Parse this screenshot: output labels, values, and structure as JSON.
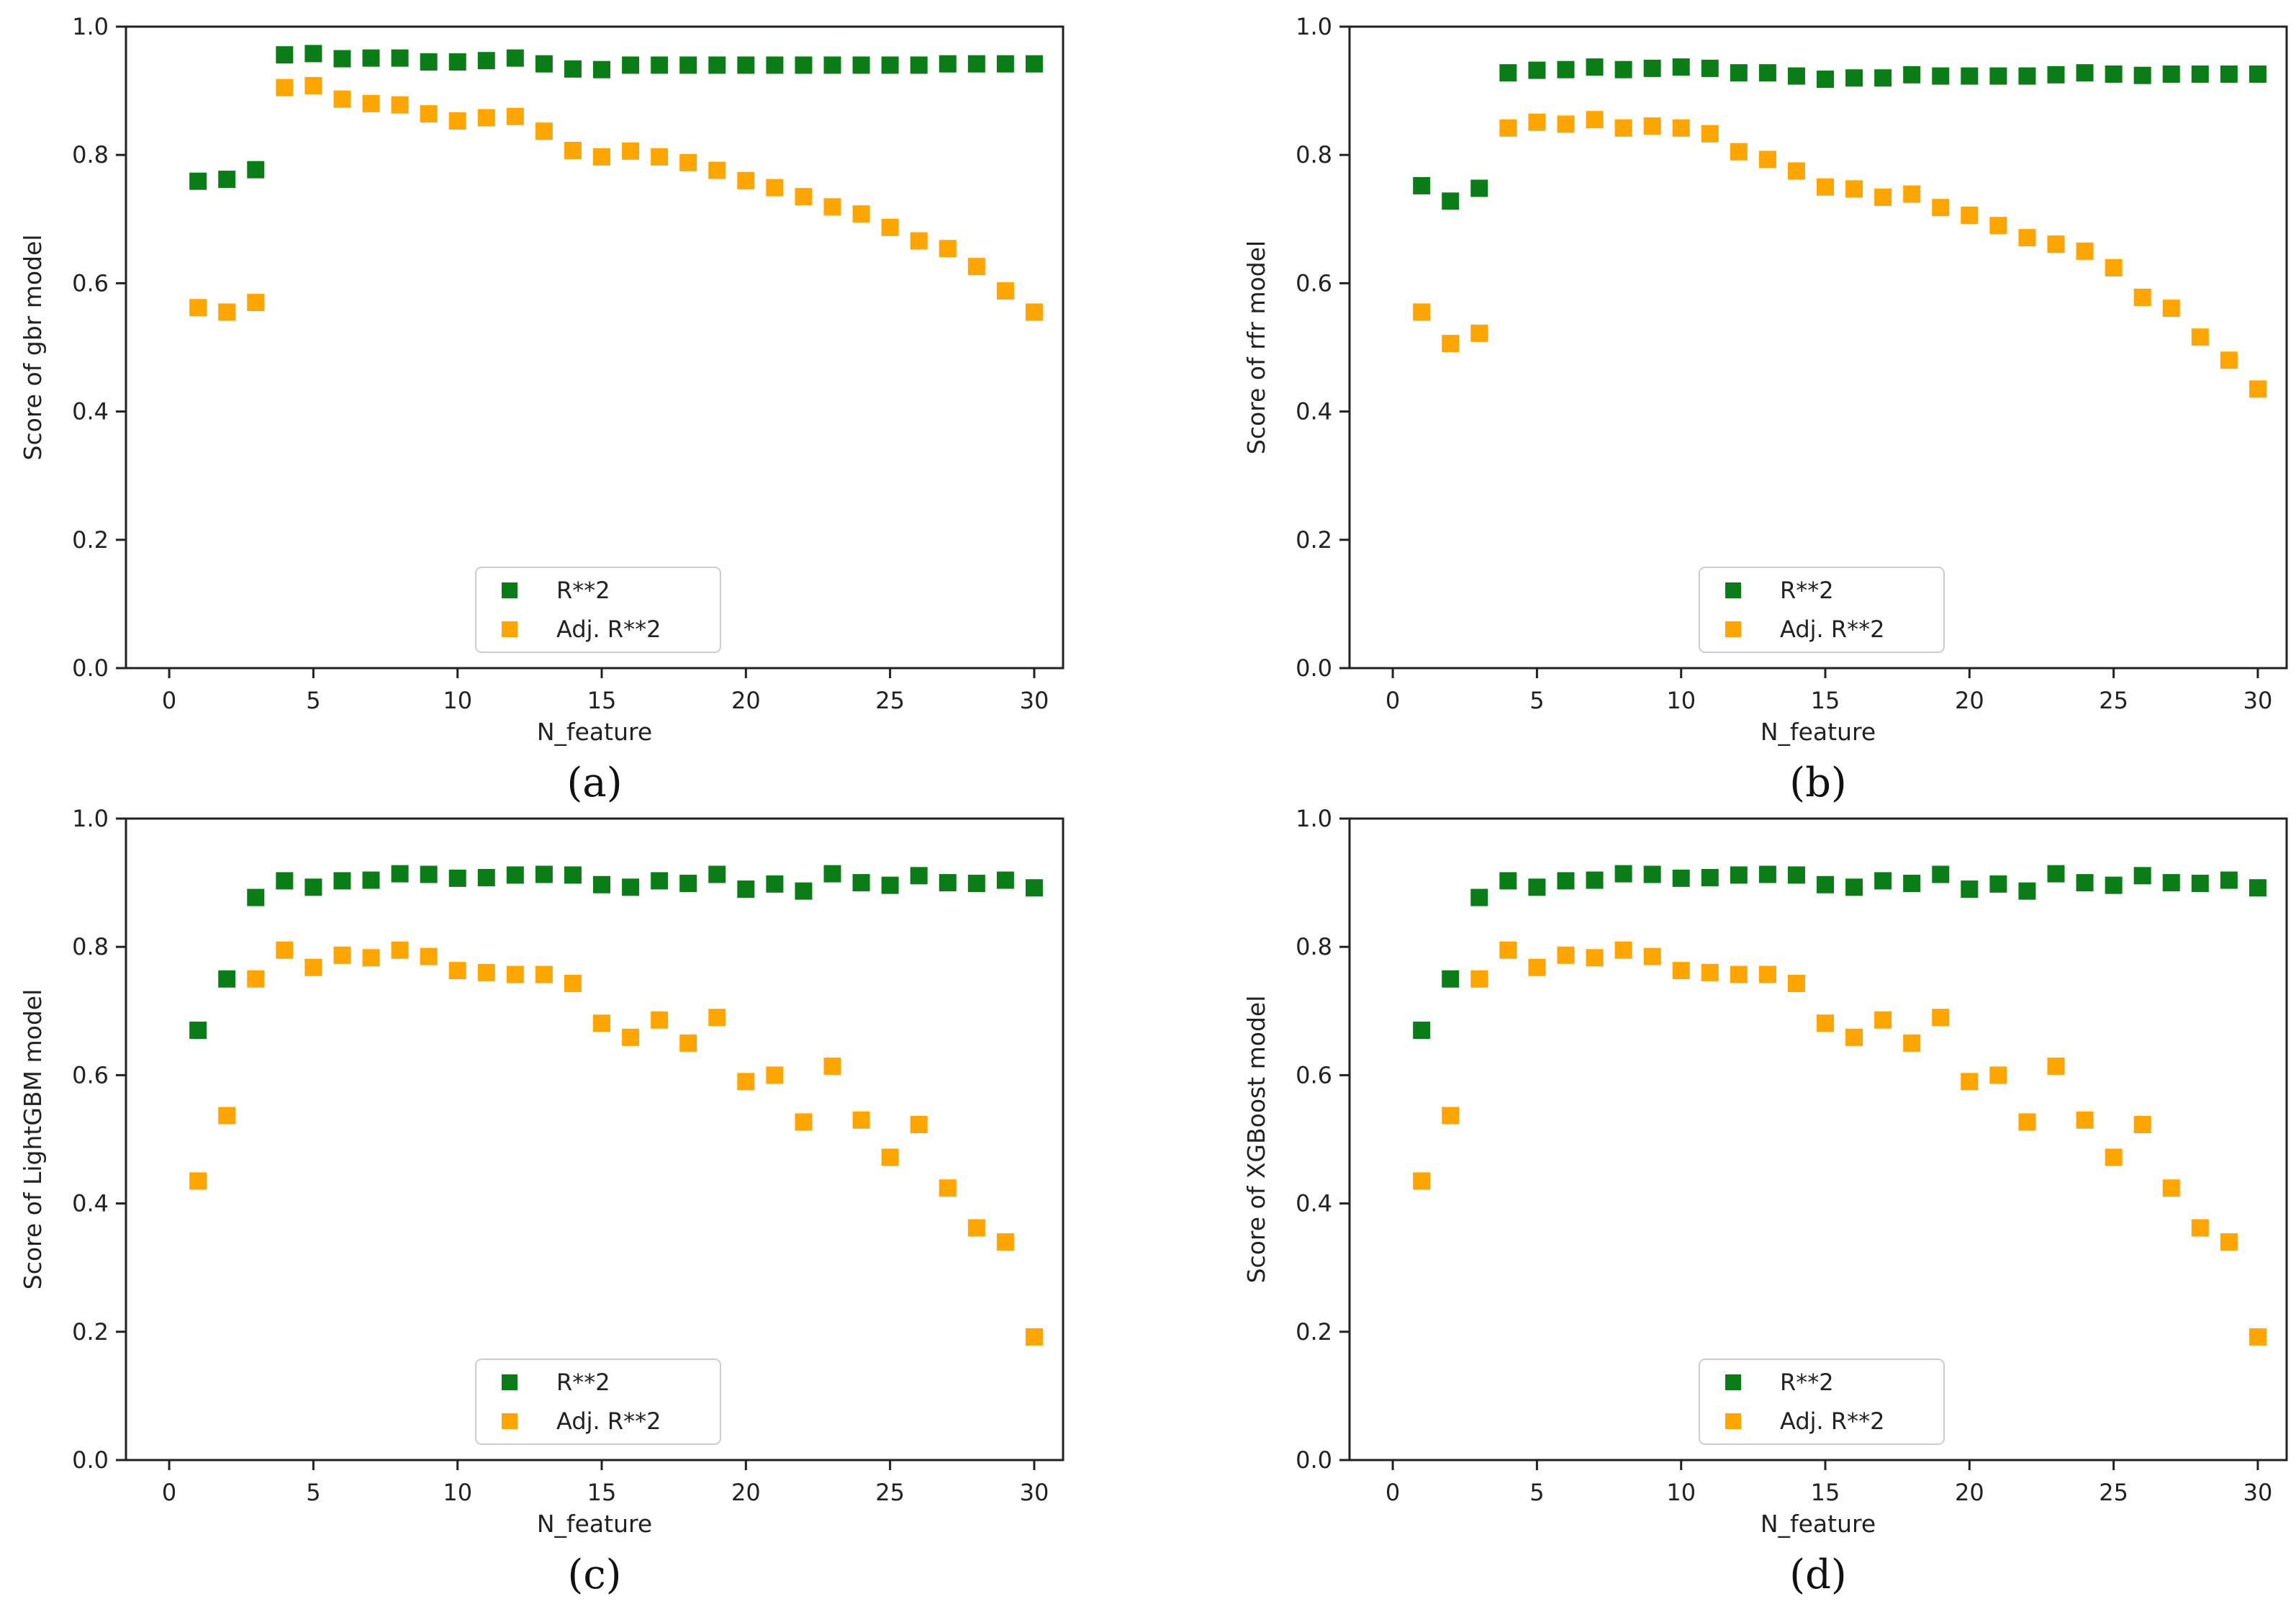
{
  "colors": {
    "r2": "#0b7d16",
    "adj_r2": "#ffa500",
    "axis": "#222222"
  },
  "legend_labels": [
    "R**2",
    "Adj. R**2"
  ],
  "chart_data": [
    {
      "id": "a",
      "type": "scatter",
      "caption": "(a)",
      "xlabel": "N_feature",
      "ylabel": "Score of gbr model",
      "xlim": [
        -1.5,
        31
      ],
      "ylim": [
        0.0,
        1.0
      ],
      "xticks": [
        "0",
        "5",
        "10",
        "15",
        "20",
        "25",
        "30"
      ],
      "yticks": [
        "0.0",
        "0.2",
        "0.4",
        "0.6",
        "0.8",
        "1.0"
      ],
      "grid": false,
      "legend_position": "bottom-center",
      "x": [
        1,
        2,
        3,
        4,
        5,
        6,
        7,
        8,
        9,
        10,
        11,
        12,
        13,
        14,
        15,
        16,
        17,
        18,
        19,
        20,
        21,
        22,
        23,
        24,
        25,
        26,
        27,
        28,
        29,
        30
      ],
      "series": [
        {
          "name": "R**2",
          "values": [
            0.759,
            0.762,
            0.777,
            0.956,
            0.958,
            0.95,
            0.951,
            0.951,
            0.945,
            0.945,
            0.947,
            0.951,
            0.942,
            0.934,
            0.933,
            0.94,
            0.94,
            0.94,
            0.94,
            0.94,
            0.94,
            0.94,
            0.94,
            0.94,
            0.94,
            0.94,
            0.942,
            0.942,
            0.942,
            0.942
          ]
        },
        {
          "name": "Adj. R**2",
          "values": [
            0.562,
            0.555,
            0.57,
            0.905,
            0.908,
            0.887,
            0.88,
            0.878,
            0.864,
            0.853,
            0.858,
            0.86,
            0.837,
            0.807,
            0.797,
            0.806,
            0.797,
            0.788,
            0.776,
            0.76,
            0.749,
            0.735,
            0.719,
            0.708,
            0.687,
            0.666,
            0.654,
            0.626,
            0.588,
            0.555
          ]
        }
      ]
    },
    {
      "id": "b",
      "type": "scatter",
      "caption": "(b)",
      "xlabel": "N_feature",
      "ylabel": "Score of rfr model",
      "xlim": [
        -1.5,
        31
      ],
      "ylim": [
        0.0,
        1.0
      ],
      "xticks": [
        "0",
        "5",
        "10",
        "15",
        "20",
        "25",
        "30"
      ],
      "yticks": [
        "0.0",
        "0.2",
        "0.4",
        "0.6",
        "0.8",
        "1.0"
      ],
      "grid": false,
      "legend_position": "bottom-center",
      "x": [
        1,
        2,
        3,
        4,
        5,
        6,
        7,
        8,
        9,
        10,
        11,
        12,
        13,
        14,
        15,
        16,
        17,
        18,
        19,
        20,
        21,
        22,
        23,
        24,
        25,
        26,
        27,
        28,
        29,
        30
      ],
      "series": [
        {
          "name": "R**2",
          "values": [
            0.752,
            0.728,
            0.748,
            0.928,
            0.932,
            0.933,
            0.937,
            0.933,
            0.935,
            0.937,
            0.935,
            0.928,
            0.928,
            0.923,
            0.918,
            0.92,
            0.92,
            0.925,
            0.923,
            0.923,
            0.923,
            0.923,
            0.925,
            0.928,
            0.926,
            0.924,
            0.926,
            0.926,
            0.926,
            0.926
          ]
        },
        {
          "name": "Adj. R**2",
          "values": [
            0.555,
            0.506,
            0.522,
            0.842,
            0.851,
            0.848,
            0.855,
            0.842,
            0.845,
            0.842,
            0.833,
            0.805,
            0.793,
            0.775,
            0.75,
            0.747,
            0.734,
            0.739,
            0.718,
            0.706,
            0.69,
            0.671,
            0.661,
            0.65,
            0.624,
            0.578,
            0.561,
            0.516,
            0.48,
            0.435
          ]
        }
      ]
    },
    {
      "id": "c",
      "type": "scatter",
      "caption": "(c)",
      "xlabel": "N_feature",
      "ylabel": "Score of LightGBM model",
      "xlim": [
        -1.5,
        31
      ],
      "ylim": [
        0.0,
        1.0
      ],
      "xticks": [
        "0",
        "5",
        "10",
        "15",
        "20",
        "25",
        "30"
      ],
      "yticks": [
        "0.0",
        "0.2",
        "0.4",
        "0.6",
        "0.8",
        "1.0"
      ],
      "grid": false,
      "legend_position": "bottom-center",
      "x": [
        1,
        2,
        3,
        4,
        5,
        6,
        7,
        8,
        9,
        10,
        11,
        12,
        13,
        14,
        15,
        16,
        17,
        18,
        19,
        20,
        21,
        22,
        23,
        24,
        25,
        26,
        27,
        28,
        29,
        30
      ],
      "series": [
        {
          "name": "R**2",
          "values": [
            0.67,
            0.75,
            0.877,
            0.903,
            0.893,
            0.903,
            0.904,
            0.914,
            0.913,
            0.907,
            0.908,
            0.912,
            0.913,
            0.912,
            0.897,
            0.893,
            0.903,
            0.899,
            0.913,
            0.89,
            0.898,
            0.887,
            0.914,
            0.9,
            0.896,
            0.911,
            0.9,
            0.899,
            0.904,
            0.892
          ]
        },
        {
          "name": "Adj. R**2",
          "values": [
            0.435,
            0.537,
            0.75,
            0.795,
            0.768,
            0.787,
            0.783,
            0.795,
            0.785,
            0.763,
            0.76,
            0.757,
            0.757,
            0.743,
            0.681,
            0.659,
            0.686,
            0.65,
            0.69,
            0.59,
            0.6,
            0.527,
            0.614,
            0.53,
            0.472,
            0.523,
            0.424,
            0.362,
            0.34,
            0.192
          ]
        }
      ]
    },
    {
      "id": "d",
      "type": "scatter",
      "caption": "(d)",
      "xlabel": "N_feature",
      "ylabel": "Score of XGBoost model",
      "xlim": [
        -1.5,
        31
      ],
      "ylim": [
        0.0,
        1.0
      ],
      "xticks": [
        "0",
        "5",
        "10",
        "15",
        "20",
        "25",
        "30"
      ],
      "yticks": [
        "0.0",
        "0.2",
        "0.4",
        "0.6",
        "0.8",
        "1.0"
      ],
      "grid": false,
      "legend_position": "bottom-center",
      "x": [
        1,
        2,
        3,
        4,
        5,
        6,
        7,
        8,
        9,
        10,
        11,
        12,
        13,
        14,
        15,
        16,
        17,
        18,
        19,
        20,
        21,
        22,
        23,
        24,
        25,
        26,
        27,
        28,
        29,
        30
      ],
      "series": [
        {
          "name": "R**2",
          "values": [
            0.67,
            0.75,
            0.877,
            0.903,
            0.893,
            0.903,
            0.904,
            0.914,
            0.913,
            0.907,
            0.908,
            0.912,
            0.913,
            0.912,
            0.897,
            0.893,
            0.903,
            0.899,
            0.913,
            0.89,
            0.898,
            0.887,
            0.914,
            0.9,
            0.896,
            0.911,
            0.9,
            0.899,
            0.904,
            0.892
          ]
        },
        {
          "name": "Adj. R**2",
          "values": [
            0.435,
            0.537,
            0.75,
            0.795,
            0.768,
            0.787,
            0.783,
            0.795,
            0.785,
            0.763,
            0.76,
            0.757,
            0.757,
            0.743,
            0.681,
            0.659,
            0.686,
            0.65,
            0.69,
            0.59,
            0.6,
            0.527,
            0.614,
            0.53,
            0.472,
            0.523,
            0.424,
            0.362,
            0.34,
            0.192
          ]
        }
      ]
    }
  ]
}
